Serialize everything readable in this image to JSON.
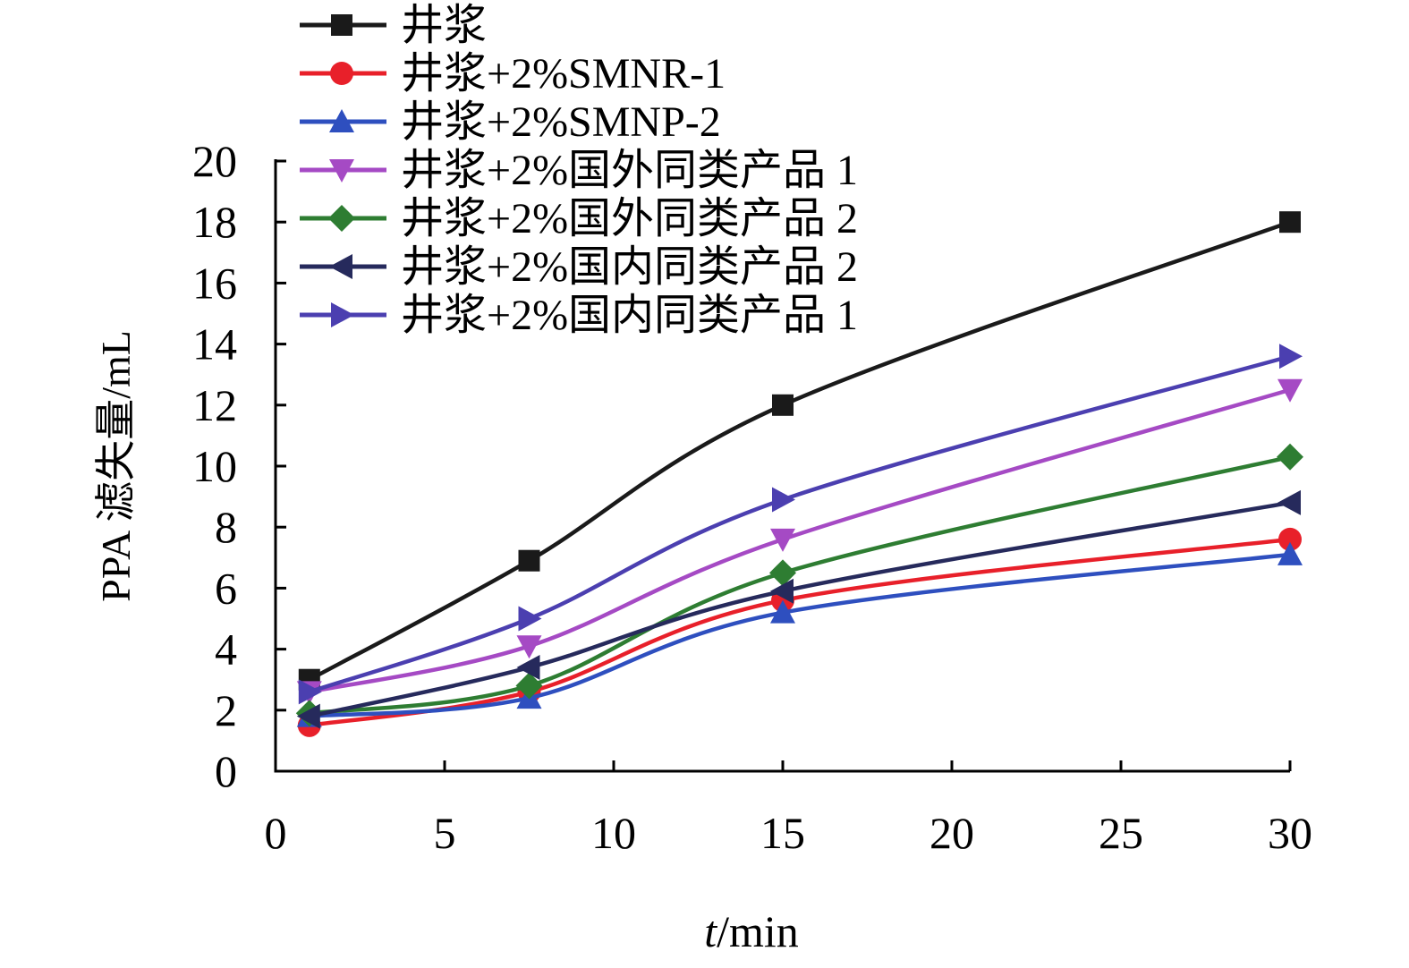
{
  "chart_data": {
    "type": "line",
    "title": "",
    "xlabel_italic": "t",
    "xlabel_rest": "/min",
    "ylabel": "PPA 滤失量/mL",
    "xlim": [
      0,
      30
    ],
    "ylim": [
      0,
      20
    ],
    "xticks": [
      0,
      5,
      10,
      15,
      20,
      25,
      30
    ],
    "yticks": [
      0,
      2,
      4,
      6,
      8,
      10,
      12,
      14,
      16,
      18,
      20
    ],
    "grid": false,
    "legend_position": "top-left",
    "x": [
      1,
      7.5,
      15,
      30
    ],
    "series": [
      {
        "name": "井浆",
        "color": "#1a1a1a",
        "marker": "square",
        "values": [
          3.0,
          6.9,
          12.0,
          18.0
        ]
      },
      {
        "name": "井浆+2%SMNR-1",
        "color": "#e8202a",
        "marker": "circle",
        "values": [
          1.5,
          2.6,
          5.6,
          7.6
        ]
      },
      {
        "name": "井浆+2%SMNP-2",
        "color": "#2e4fbf",
        "marker": "triangle-up",
        "values": [
          1.8,
          2.4,
          5.2,
          7.1
        ]
      },
      {
        "name": "井浆+2%国外同类产品 1",
        "color": "#a54ac4",
        "marker": "triangle-down",
        "values": [
          2.6,
          4.1,
          7.6,
          12.5
        ]
      },
      {
        "name": "井浆+2%国外同类产品 2",
        "color": "#2e7d32",
        "marker": "diamond",
        "values": [
          1.9,
          2.8,
          6.5,
          10.3
        ]
      },
      {
        "name": "井浆+2%国内同类产品 2",
        "color": "#262a5c",
        "marker": "triangle-left",
        "values": [
          1.8,
          3.4,
          5.9,
          8.8
        ]
      },
      {
        "name": "井浆+2%国内同类产品 1",
        "color": "#4b3fb0",
        "marker": "triangle-right",
        "values": [
          2.6,
          5.0,
          8.9,
          13.6
        ]
      }
    ]
  }
}
